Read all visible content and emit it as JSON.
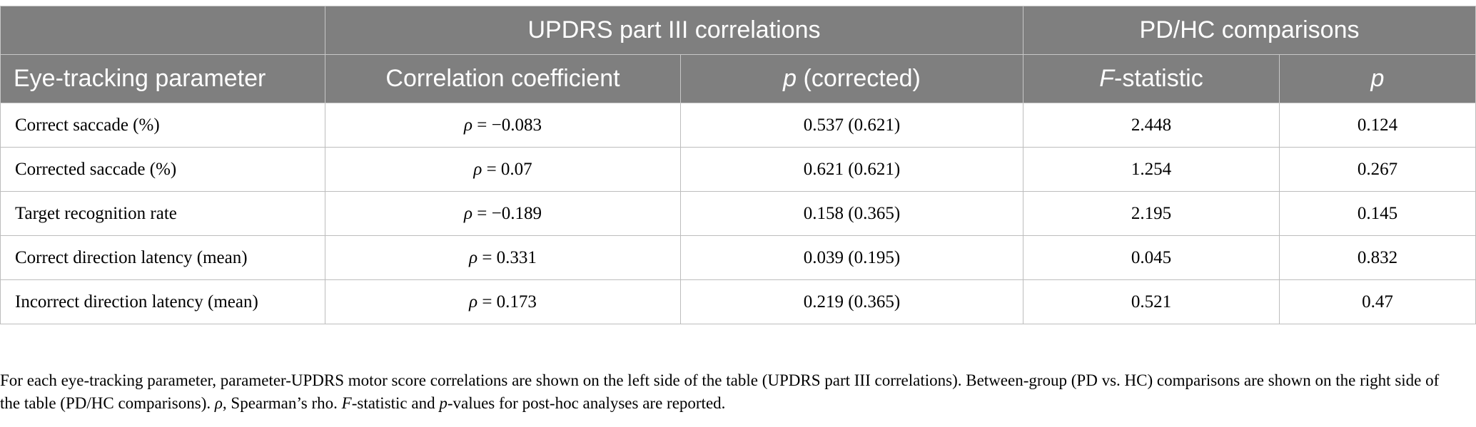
{
  "table": {
    "group_headers": {
      "updrs": "UPDRS part III correlations",
      "pdhc": "PD/HC comparisons"
    },
    "columns": {
      "parameter": "Eye-tracking parameter",
      "corr": "Correlation coefficient",
      "p_corr_italic": "p",
      "p_corr_rest": " (corrected)",
      "f_italic": "F",
      "f_rest": "-statistic",
      "p_italic": "p"
    },
    "rho_symbol": "ρ",
    "rows": [
      {
        "parameter": "Correct saccade (%)",
        "rho": " = −0.083",
        "p_corrected": "0.537 (0.621)",
        "f": "2.448",
        "p": "0.124"
      },
      {
        "parameter": "Corrected saccade (%)",
        "rho": " = 0.07",
        "p_corrected": "0.621 (0.621)",
        "f": "1.254",
        "p": "0.267"
      },
      {
        "parameter": "Target recognition rate",
        "rho": " = −0.189",
        "p_corrected": "0.158 (0.365)",
        "f": "2.195",
        "p": "0.145"
      },
      {
        "parameter": "Correct direction latency (mean)",
        "rho": " = 0.331",
        "p_corrected": "0.039 (0.195)",
        "f": "0.045",
        "p": "0.832"
      },
      {
        "parameter": "Incorrect direction latency (mean)",
        "rho": " = 0.173",
        "p_corrected": "0.219 (0.365)",
        "f": "0.521",
        "p": "0.47"
      }
    ]
  },
  "footnote": {
    "part1": "For each eye-tracking parameter, parameter-UPDRS motor score correlations are shown on the left side of the table (UPDRS part III correlations). Between-group (PD vs. HC) comparisons are shown on the right side of the table (PD/HC comparisons). ",
    "rho": "ρ",
    "part2": ", Spearman’s rho. ",
    "f": "F",
    "part3": "-statistic and ",
    "p": "p",
    "part4": "-values for post-hoc analyses are reported."
  }
}
